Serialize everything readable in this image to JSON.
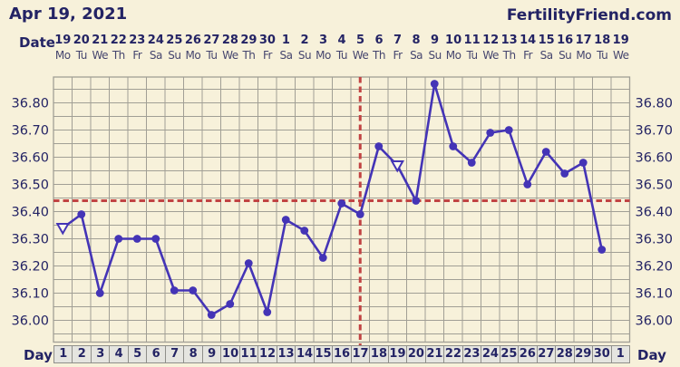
{
  "header": {
    "title": "Apr 19, 2021",
    "brand": "FertilityFriend.com"
  },
  "date_axis": {
    "label": "Date",
    "dates": [
      "19",
      "20",
      "21",
      "22",
      "23",
      "24",
      "25",
      "26",
      "27",
      "28",
      "29",
      "30",
      "1",
      "2",
      "3",
      "4",
      "5",
      "6",
      "7",
      "8",
      "9",
      "10",
      "11",
      "12",
      "13",
      "14",
      "15",
      "16",
      "17",
      "18",
      "19"
    ],
    "weekdays": [
      "Mo",
      "Tu",
      "We",
      "Th",
      "Fr",
      "Sa",
      "Su",
      "Mo",
      "Tu",
      "We",
      "Th",
      "Fr",
      "Sa",
      "Su",
      "Mo",
      "Tu",
      "We",
      "Th",
      "Fr",
      "Sa",
      "Su",
      "Mo",
      "Tu",
      "We",
      "Th",
      "Fr",
      "Sa",
      "Su",
      "Mo",
      "Tu",
      "We"
    ]
  },
  "day_axis": {
    "label_left": "Day",
    "label_right": "Day",
    "cells": [
      "1",
      "2",
      "3",
      "4",
      "5",
      "6",
      "7",
      "8",
      "9",
      "10",
      "11",
      "12",
      "13",
      "14",
      "15",
      "16",
      "17",
      "18",
      "19",
      "20",
      "21",
      "22",
      "23",
      "24",
      "25",
      "26",
      "27",
      "28",
      "29",
      "30",
      "1"
    ]
  },
  "y_axis": {
    "tick_labels": [
      "36.80",
      "36.70",
      "36.60",
      "36.50",
      "36.40",
      "36.30",
      "36.20",
      "36.10",
      "36.00"
    ]
  },
  "chart_data": {
    "type": "line",
    "x_days": [
      1,
      2,
      3,
      4,
      5,
      6,
      7,
      8,
      9,
      10,
      11,
      12,
      13,
      14,
      15,
      16,
      17,
      18,
      19,
      20,
      21,
      22,
      23,
      24,
      25,
      26,
      27,
      28,
      29,
      30
    ],
    "values": [
      36.34,
      36.39,
      36.1,
      36.3,
      36.3,
      36.3,
      36.11,
      36.11,
      36.02,
      36.06,
      36.21,
      36.03,
      36.37,
      36.33,
      36.23,
      36.43,
      36.39,
      36.64,
      36.57,
      36.44,
      36.87,
      36.64,
      36.58,
      36.69,
      36.7,
      36.5,
      36.62,
      36.54,
      36.58,
      36.26
    ],
    "open_triangle_days": [
      1,
      19
    ],
    "coverline_temp": 36.44,
    "ovulation_line_day": 17,
    "ylim": [
      35.92,
      36.895
    ],
    "grid_step": 0.05,
    "num_columns": 31,
    "grid_on": true,
    "colors": {
      "line": "#4434b6",
      "marker": "#4434b6",
      "coverline": "#c14343",
      "grid": "#a19f95",
      "background": "#f7f1da",
      "text": "#232364",
      "day_cell_bg": "#e5e5e0"
    }
  }
}
